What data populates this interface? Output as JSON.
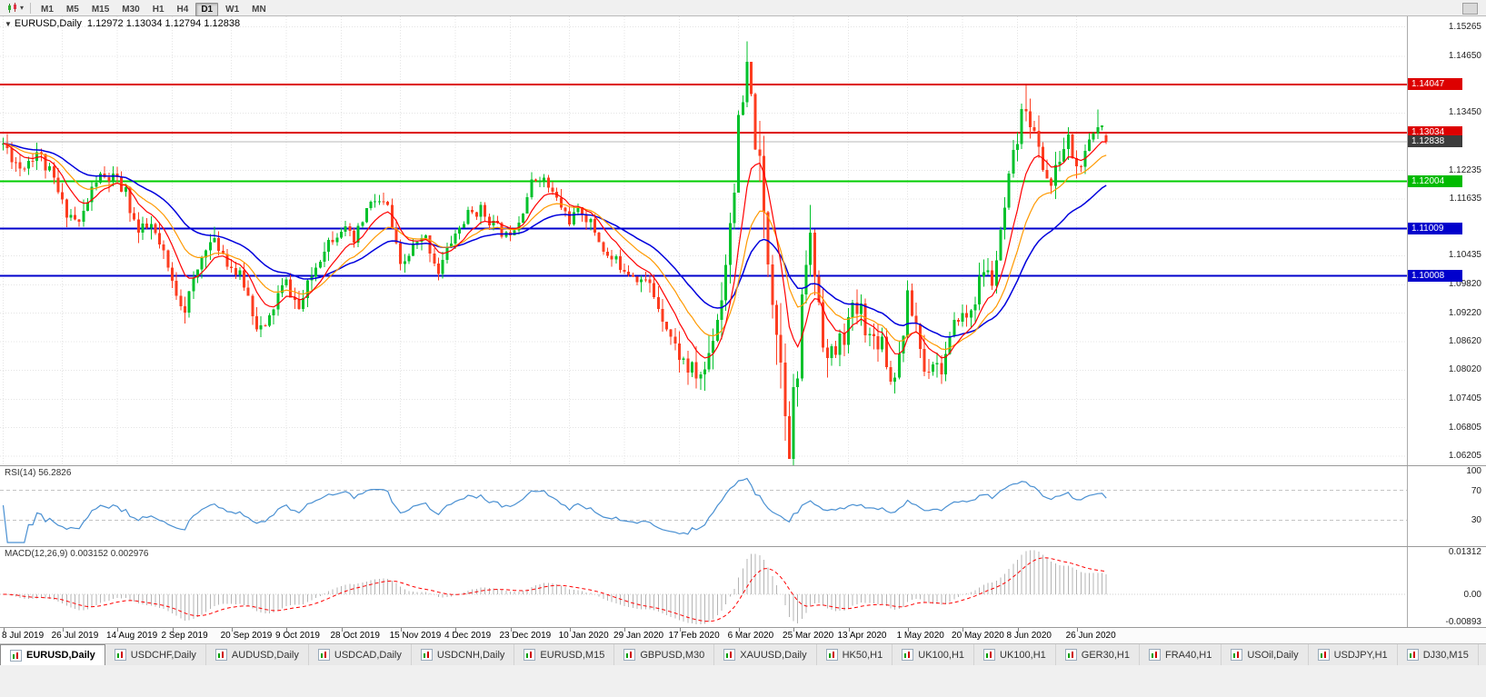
{
  "icons": {
    "collapse_arrow": "▼",
    "dropdown_caret": "▾"
  },
  "toolbar": {
    "timeframes": [
      "M1",
      "M5",
      "M15",
      "M30",
      "H1",
      "H4",
      "D1",
      "W1",
      "MN"
    ],
    "active_timeframe": "D1"
  },
  "chart": {
    "symbol_period": "EURUSD,Daily",
    "ohlc_text": "1.12972 1.13034 1.12794 1.12838",
    "open": "1.12972",
    "high": "1.13034",
    "low": "1.12794",
    "close": "1.12838"
  },
  "price_axis": {
    "ticks": [
      "1.15265",
      "1.14650",
      "1.13450",
      "1.12235",
      "1.11635",
      "1.10435",
      "1.09820",
      "1.09220",
      "1.08620",
      "1.08020",
      "1.07405",
      "1.06805",
      "1.06205"
    ],
    "badges": [
      {
        "value": 1.14047,
        "label": "1.14047",
        "color": "#dd0000"
      },
      {
        "value": 1.13034,
        "label": "1.13034",
        "color": "#dd0000"
      },
      {
        "value": 1.12004,
        "label": "1.12004",
        "color": "#00bb00"
      },
      {
        "value": 1.11009,
        "label": "1.11009",
        "color": "#0000cc"
      },
      {
        "value": 1.10008,
        "label": "1.10008",
        "color": "#0000cc"
      },
      {
        "value": 1.12838,
        "label": "1.12838",
        "color": "#3c3c3c"
      }
    ]
  },
  "rsi": {
    "label": "RSI(14) 56.2826",
    "period": 14,
    "value": 56.2826,
    "levels": [
      70,
      30
    ],
    "axis_labels": [
      "100",
      "70",
      "30"
    ]
  },
  "macd": {
    "label": "MACD(12,26,9) 0.003152 0.002976",
    "macd_value": 0.003152,
    "signal_value": 0.002976,
    "axis_top": "0.01312",
    "axis_zero": "0.00",
    "axis_bottom": "-0.00893"
  },
  "tabs": [
    {
      "label": "EURUSD,Daily",
      "active": true
    },
    {
      "label": "USDCHF,Daily",
      "active": false
    },
    {
      "label": "AUDUSD,Daily",
      "active": false
    },
    {
      "label": "USDCAD,Daily",
      "active": false
    },
    {
      "label": "USDCNH,Daily",
      "active": false
    },
    {
      "label": "EURUSD,M15",
      "active": false
    },
    {
      "label": "GBPUSD,M30",
      "active": false
    },
    {
      "label": "XAUUSD,Daily",
      "active": false
    },
    {
      "label": "HK50,H1",
      "active": false
    },
    {
      "label": "UK100,H1",
      "active": false
    },
    {
      "label": "UK100,H1",
      "active": false
    },
    {
      "label": "GER30,H1",
      "active": false
    },
    {
      "label": "FRA40,H1",
      "active": false
    },
    {
      "label": "USOil,Daily",
      "active": false
    },
    {
      "label": "USDJPY,H1",
      "active": false
    },
    {
      "label": "DJ30,M15",
      "active": false
    }
  ],
  "colors": {
    "candle_up": "#00c12b",
    "candle_down": "#fd3c1f",
    "ma_fast": "#ff0000",
    "ma_medium": "#ff9900",
    "ma_slow": "#0000dd",
    "rsi_line": "#4a90d2",
    "macd_histogram": "#b4b4b4",
    "macd_signal": "#ff0000",
    "grid": "#e4e4e4",
    "level_dash": "#c4c4c4"
  },
  "chart_data": {
    "type": "candlestick",
    "symbol": "EURUSD",
    "timeframe": "Daily",
    "title": "EURUSD,Daily 1.12972 1.13034 1.12794 1.12838",
    "x_range": [
      "8 Jul 2019",
      "3 Jul 2020"
    ],
    "scale": {
      "price_min": 1.0601,
      "price_max": 1.1549
    },
    "candle_count": 262,
    "seed": 11,
    "price_anchors": [
      [
        0,
        1.128
      ],
      [
        4,
        1.123
      ],
      [
        8,
        1.1265
      ],
      [
        12,
        1.12
      ],
      [
        14,
        1.115
      ],
      [
        18,
        1.111
      ],
      [
        22,
        1.1205
      ],
      [
        26,
        1.1205
      ],
      [
        29,
        1.1175
      ],
      [
        32,
        1.109
      ],
      [
        35,
        1.1105
      ],
      [
        38,
        1.104
      ],
      [
        40,
        1.0985
      ],
      [
        43,
        1.0935
      ],
      [
        46,
        1.101
      ],
      [
        48,
        1.107
      ],
      [
        51,
        1.1065
      ],
      [
        54,
        1.102
      ],
      [
        57,
        1.0985
      ],
      [
        60,
        1.09
      ],
      [
        62,
        1.0885
      ],
      [
        65,
        1.096
      ],
      [
        67,
        1.0985
      ],
      [
        70,
        1.093
      ],
      [
        73,
        1.1
      ],
      [
        76,
        1.1065
      ],
      [
        80,
        1.1105
      ],
      [
        83,
        1.107
      ],
      [
        86,
        1.114
      ],
      [
        88,
        1.116
      ],
      [
        91,
        1.1145
      ],
      [
        94,
        1.1015
      ],
      [
        97,
        1.106
      ],
      [
        100,
        1.108
      ],
      [
        103,
        1.101
      ],
      [
        106,
        1.1075
      ],
      [
        110,
        1.113
      ],
      [
        113,
        1.114
      ],
      [
        116,
        1.111
      ],
      [
        119,
        1.1085
      ],
      [
        122,
        1.112
      ],
      [
        125,
        1.1195
      ],
      [
        127,
        1.1215
      ],
      [
        130,
        1.1175
      ],
      [
        134,
        1.112
      ],
      [
        137,
        1.114
      ],
      [
        140,
        1.1095
      ],
      [
        143,
        1.104
      ],
      [
        147,
        1.102
      ],
      [
        150,
        1.1
      ],
      [
        153,
        1.098
      ],
      [
        156,
        1.092
      ],
      [
        159,
        1.085
      ],
      [
        162,
        1.0805
      ],
      [
        164,
        1.079
      ],
      [
        166,
        1.08
      ],
      [
        168,
        1.088
      ],
      [
        170,
        1.096
      ],
      [
        172,
        1.112
      ],
      [
        174,
        1.13
      ],
      [
        176,
        1.142
      ],
      [
        178,
        1.13
      ],
      [
        180,
        1.112
      ],
      [
        182,
        1.098
      ],
      [
        184,
        1.082
      ],
      [
        186,
        1.067
      ],
      [
        188,
        1.079
      ],
      [
        190,
        1.104
      ],
      [
        191,
        1.107
      ],
      [
        193,
        1.095
      ],
      [
        195,
        1.082
      ],
      [
        197,
        1.084
      ],
      [
        199,
        1.088
      ],
      [
        201,
        1.092
      ],
      [
        203,
        1.093
      ],
      [
        205,
        1.087
      ],
      [
        208,
        1.087
      ],
      [
        210,
        1.078
      ],
      [
        212,
        1.083
      ],
      [
        214,
        1.095
      ],
      [
        216,
        1.09
      ],
      [
        218,
        1.08
      ],
      [
        220,
        1.0825
      ],
      [
        222,
        1.0805
      ],
      [
        224,
        1.086
      ],
      [
        226,
        1.092
      ],
      [
        228,
        1.091
      ],
      [
        230,
        1.0955
      ],
      [
        232,
        1.1015
      ],
      [
        234,
        1.099
      ],
      [
        236,
        1.108
      ],
      [
        238,
        1.1195
      ],
      [
        240,
        1.129
      ],
      [
        242,
        1.137
      ],
      [
        244,
        1.1295
      ],
      [
        246,
        1.1235
      ],
      [
        248,
        1.119
      ],
      [
        250,
        1.125
      ],
      [
        252,
        1.129
      ],
      [
        254,
        1.1225
      ],
      [
        256,
        1.125
      ],
      [
        258,
        1.13
      ],
      [
        260,
        1.133
      ],
      [
        261,
        1.1284
      ]
    ],
    "volatility_anchors": [
      [
        0,
        0.0042
      ],
      [
        40,
        0.0045
      ],
      [
        80,
        0.0038
      ],
      [
        120,
        0.003
      ],
      [
        150,
        0.0038
      ],
      [
        160,
        0.005
      ],
      [
        170,
        0.0085
      ],
      [
        176,
        0.0125
      ],
      [
        182,
        0.013
      ],
      [
        186,
        0.0145
      ],
      [
        190,
        0.0115
      ],
      [
        196,
        0.008
      ],
      [
        205,
        0.0062
      ],
      [
        215,
        0.0055
      ],
      [
        225,
        0.0048
      ],
      [
        235,
        0.0055
      ],
      [
        242,
        0.0065
      ],
      [
        250,
        0.005
      ],
      [
        261,
        0.0042
      ]
    ],
    "overrides": {
      "176": {
        "h": 1.1496
      },
      "186": {
        "l": 1.0636
      },
      "242": {
        "h": 1.1403
      },
      "259": {
        "h": 1.1352
      },
      "261": {
        "o": 1.12972,
        "h": 1.13034,
        "l": 1.12794,
        "c": 1.12838
      }
    },
    "moving_averages": [
      {
        "name": "slow",
        "period": 34,
        "color": "#0000dd"
      },
      {
        "name": "medium",
        "period": 18,
        "color": "#ff9900"
      },
      {
        "name": "fast",
        "period": 9,
        "color": "#ff0000"
      }
    ],
    "hlines": [
      {
        "price": 1.14047,
        "color": "#dd0000",
        "width": 2,
        "name": "resistance-1.14047"
      },
      {
        "price": 1.13034,
        "color": "#dd0000",
        "width": 2,
        "name": "resistance-1.13034"
      },
      {
        "price": 1.12004,
        "color": "#00cc00",
        "width": 2,
        "name": "support-1.12004"
      },
      {
        "price": 1.11009,
        "color": "#0000cc",
        "width": 2,
        "name": "support-1.11009"
      },
      {
        "price": 1.10008,
        "color": "#0000cc",
        "width": 2,
        "name": "support-1.10008"
      },
      {
        "price": 1.12838,
        "color": "#b8b8b8",
        "width": 1,
        "name": "current-price-line"
      }
    ],
    "time_labels": [
      {
        "text": "8 Jul 2019",
        "idx": 0
      },
      {
        "text": "26 Jul 2019",
        "idx": 14
      },
      {
        "text": "14 Aug 2019",
        "idx": 27
      },
      {
        "text": "2 Sep 2019",
        "idx": 40
      },
      {
        "text": "20 Sep 2019",
        "idx": 54
      },
      {
        "text": "9 Oct 2019",
        "idx": 67
      },
      {
        "text": "28 Oct 2019",
        "idx": 80
      },
      {
        "text": "15 Nov 2019",
        "idx": 94
      },
      {
        "text": "4 Dec 2019",
        "idx": 107
      },
      {
        "text": "23 Dec 2019",
        "idx": 120
      },
      {
        "text": "10 Jan 2020",
        "idx": 134
      },
      {
        "text": "29 Jan 2020",
        "idx": 147
      },
      {
        "text": "17 Feb 2020",
        "idx": 160
      },
      {
        "text": "6 Mar 2020",
        "idx": 174
      },
      {
        "text": "25 Mar 2020",
        "idx": 187
      },
      {
        "text": "13 Apr 2020",
        "idx": 200
      },
      {
        "text": "1 May 2020",
        "idx": 214
      },
      {
        "text": "20 May 2020",
        "idx": 227
      },
      {
        "text": "8 Jun 2020",
        "idx": 240
      },
      {
        "text": "26 Jun 2020",
        "idx": 254
      }
    ],
    "indicators": [
      {
        "name": "RSI",
        "params": [
          14
        ],
        "current": 56.2826
      },
      {
        "name": "MACD",
        "params": [
          12,
          26,
          9
        ],
        "current": [
          0.003152,
          0.002976
        ]
      }
    ]
  }
}
